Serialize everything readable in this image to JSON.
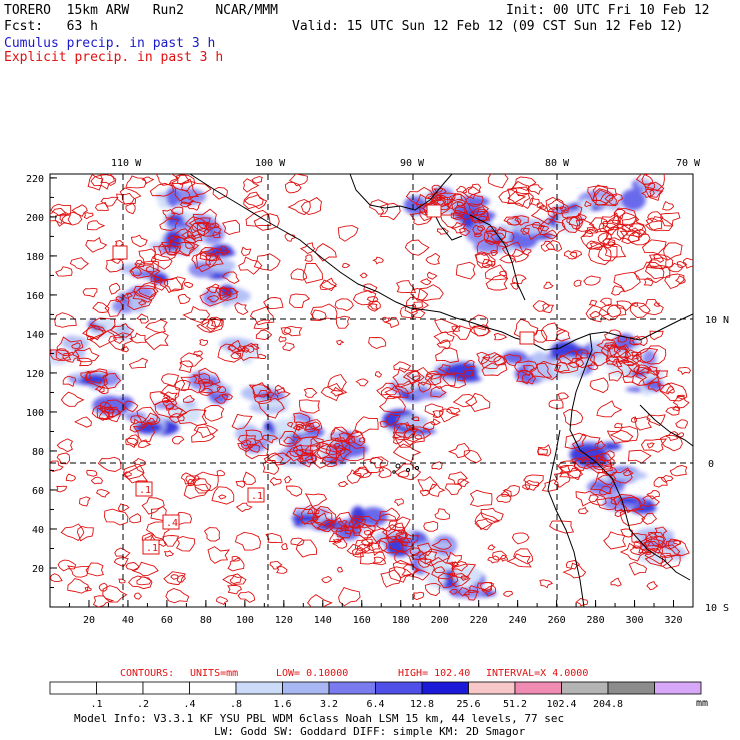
{
  "header": {
    "model": "TORERO  15km ARW   Run2    NCAR/MMM",
    "init": "Init: 00 UTC Fri 10 Feb 12",
    "fcst": "Fcst:   63 h",
    "valid": "Valid: 15 UTC Sun 12 Feb 12 (09 CST Sun 12 Feb 12)",
    "legend_cumulus": "Cumulus precip. in past 3 h",
    "legend_explicit": "Explicit precip. in past 3 h"
  },
  "colors": {
    "cumulus": "#1a1acc",
    "explicit": "#e01010",
    "coast": "#000000"
  },
  "map": {
    "x_ticks": [
      "20",
      "40",
      "60",
      "80",
      "100",
      "120",
      "140",
      "160",
      "180",
      "200",
      "220",
      "240",
      "260",
      "280",
      "300",
      "320"
    ],
    "y_ticks": [
      "20",
      "40",
      "60",
      "80",
      "100",
      "120",
      "140",
      "160",
      "180",
      "200",
      "220"
    ],
    "lon_labels": [
      "110 W",
      "100 W",
      "90 W",
      "80 W",
      "70 W"
    ],
    "lat_labels": [
      "10 N",
      "0",
      "10 S"
    ]
  },
  "contour_info": {
    "label": "CONTOURS:",
    "units": "UNITS=mm",
    "low": "LOW= 0.10000",
    "high": "HIGH=  102.40",
    "interval": "INTERVAL=X  4.0000"
  },
  "colorbar": {
    "unit": "mm",
    "labels": [
      ".1",
      ".2",
      ".4",
      ".8",
      "1.6",
      "3.2",
      "6.4",
      "12.8",
      "25.6",
      "51.2",
      "102.4",
      "204.8"
    ],
    "colors": [
      "#ffffff",
      "#ffffff",
      "#ffffff",
      "#ffffff",
      "#ccdcf8",
      "#a9b7f5",
      "#7b7bf0",
      "#5050e8",
      "#1a1ad8",
      "#f8c8c8",
      "#f08cb4",
      "#b4b4b4",
      "#8c8c8c",
      "#d8a8f8"
    ]
  },
  "footer": {
    "line1": "Model Info: V3.3.1   KF     YSU PBL  WDM 6class  Noah LSM  15 km,   44 levels,   77 sec",
    "line2": "LW: Godd SW: Goddard DIFF: simple KM: 2D Smagor"
  },
  "box_labels": [
    ".1",
    ".1",
    ".4",
    ".1"
  ]
}
